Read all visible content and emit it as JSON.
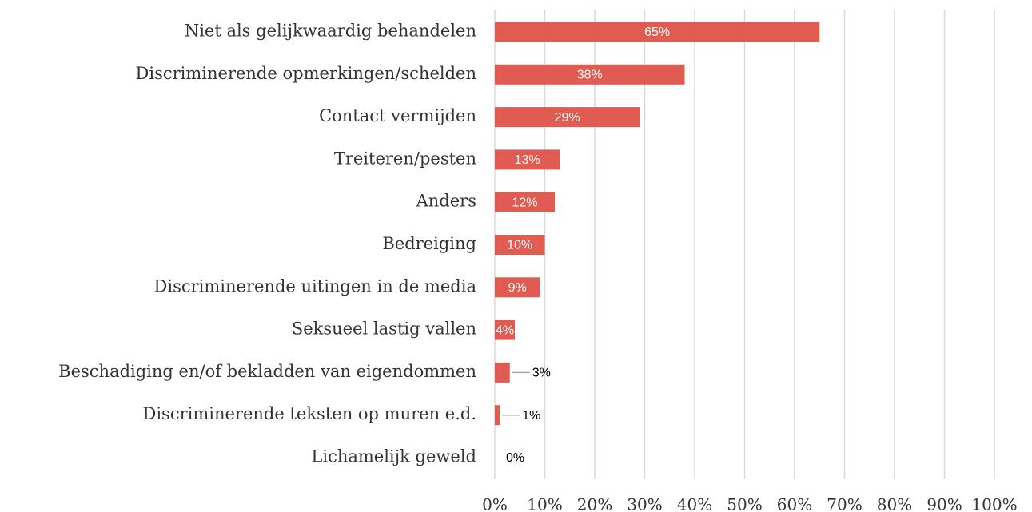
{
  "chart_data": {
    "type": "bar",
    "orientation": "horizontal",
    "categories": [
      "Niet als gelijkwaardig behandelen",
      "Discriminerende opmerkingen/schelden",
      "Contact vermijden",
      "Treiteren/pesten",
      "Anders",
      "Bedreiging",
      "Discriminerende uitingen in de media",
      "Seksueel lastig vallen",
      "Beschadiging en/of bekladden van eigendommen",
      "Discriminerende teksten op muren e.d.",
      "Lichamelijk geweld"
    ],
    "values": [
      65,
      38,
      29,
      13,
      12,
      10,
      9,
      4,
      3,
      1,
      0
    ],
    "value_labels": [
      "65%",
      "38%",
      "29%",
      "13%",
      "12%",
      "10%",
      "9%",
      "4%",
      "3%",
      "1%",
      "0%"
    ],
    "color": "#e05c52",
    "xlim": [
      0,
      100
    ],
    "xticks": [
      {
        "value": 0,
        "label": "0%"
      },
      {
        "value": 10,
        "label": "10%"
      },
      {
        "value": 20,
        "label": "20%"
      },
      {
        "value": 30,
        "label": "30%"
      },
      {
        "value": 40,
        "label": "40%"
      },
      {
        "value": 50,
        "label": "50%"
      },
      {
        "value": 60,
        "label": "60%"
      },
      {
        "value": 70,
        "label": "70%"
      },
      {
        "value": 80,
        "label": "80%"
      },
      {
        "value": 90,
        "label": "90%"
      },
      {
        "value": 100,
        "label": "100%"
      }
    ],
    "grid": true
  }
}
